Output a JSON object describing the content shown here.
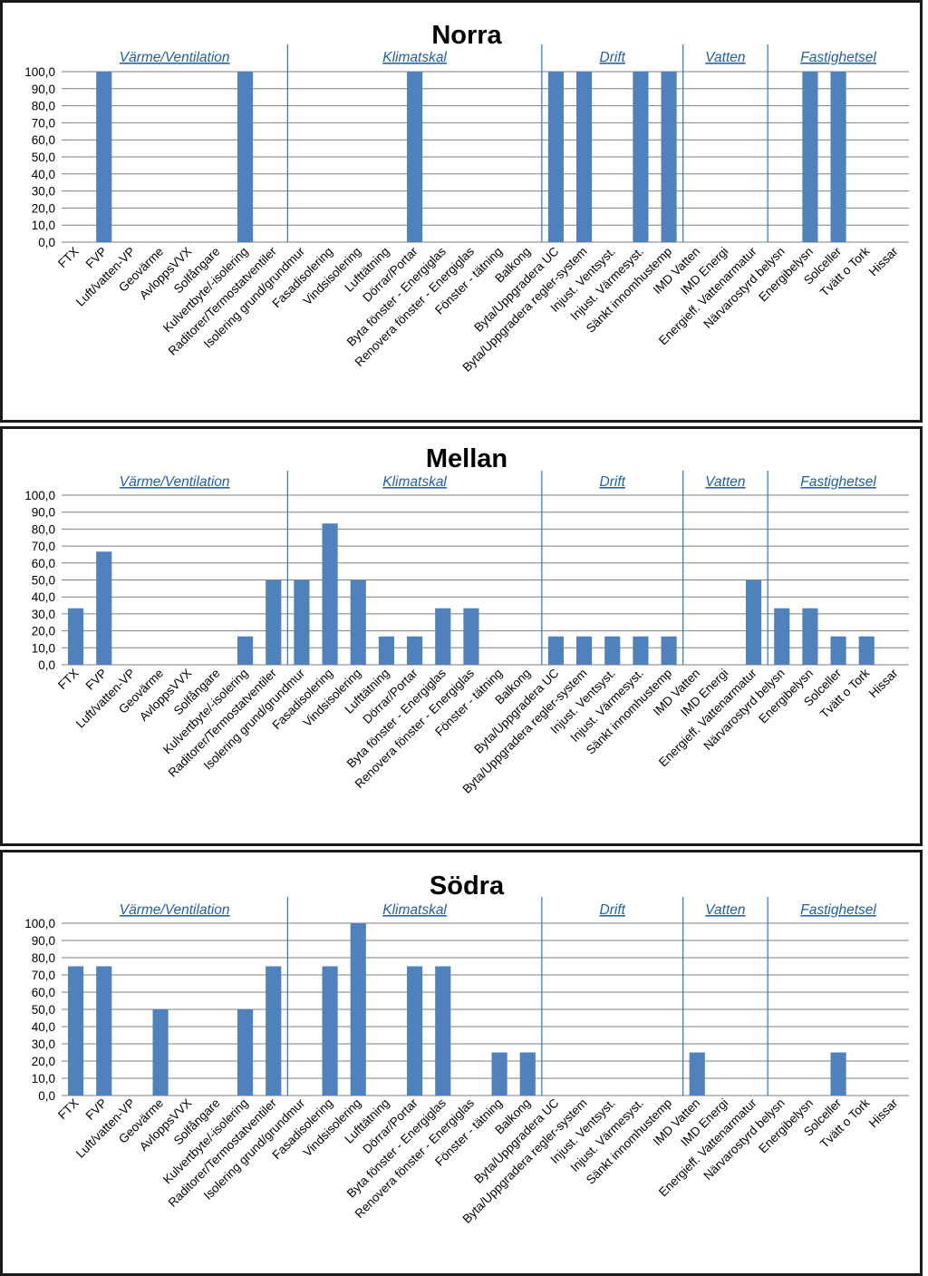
{
  "colors": {
    "bar": "#4f81bd",
    "grid": "#7f7f7f",
    "divider": "#2e75b6",
    "group_label": "#1f5fa8",
    "frame": "#1a1a1a"
  },
  "chart_data": [
    {
      "type": "bar",
      "title": "Norra",
      "ylim": [
        0,
        100
      ],
      "yticks": [
        "100,0",
        "90,0",
        "80,0",
        "70,0",
        "60,0",
        "50,0",
        "40,0",
        "30,0",
        "20,0",
        "10,0",
        "0,0"
      ],
      "grid": true,
      "groups": [
        "Värme/Ventilation",
        "Klimatskal",
        "Drift",
        "Vatten",
        "Fastighetsel"
      ],
      "categories": [
        "FTX",
        "FVP",
        "Luft/vatten-VP",
        "Geovärme",
        "AvloppsVVX",
        "Solfångare",
        "Kulvertbyte/-isolering",
        "Raditorer/Termostatventiler",
        "Isolering grund/grundmur",
        "Fasadisolering",
        "Vindsisolering",
        "Lufttätning",
        "Dörrar/Portar",
        "Byta fönster - Energiglas",
        "Renovera fönster - Energiglas",
        "Fönster - tätning",
        "Balkong",
        "Byta/Uppgradera UC",
        "Byta/Uppgradera regler-system",
        "Injust. Ventsyst.",
        "Injust. Värmesyst.",
        "Sänkt innomhustemp",
        "IMD Vatten",
        "IMD Energi",
        "Energieff. Vattenarmatur",
        "Närvarostyrd belysn",
        "Energibelysn",
        "Solceller",
        "Tvätt o Tork",
        "Hissar"
      ],
      "values": [
        0,
        100,
        0,
        0,
        0,
        0,
        100,
        0,
        0,
        0,
        0,
        0,
        100,
        0,
        0,
        0,
        0,
        100,
        100,
        0,
        100,
        100,
        0,
        0,
        0,
        0,
        100,
        100,
        0,
        0
      ]
    },
    {
      "type": "bar",
      "title": "Mellan",
      "ylim": [
        0,
        100
      ],
      "yticks": [
        "100,0",
        "90,0",
        "80,0",
        "70,0",
        "60,0",
        "50,0",
        "40,0",
        "30,0",
        "20,0",
        "10,0",
        "0,0"
      ],
      "grid": true,
      "groups": [
        "Värme/Ventilation",
        "Klimatskal",
        "Drift",
        "Vatten",
        "Fastighetsel"
      ],
      "categories": [
        "FTX",
        "FVP",
        "Luft/vatten-VP",
        "Geovärme",
        "AvloppsVVX",
        "Solfångare",
        "Kulvertbyte/-isolering",
        "Raditorer/Termostatventiler",
        "Isolering grund/grundmur",
        "Fasadisolering",
        "Vindsisolering",
        "Lufttätning",
        "Dörrar/Portar",
        "Byta fönster - Energiglas",
        "Renovera fönster - Energiglas",
        "Fönster - tätning",
        "Balkong",
        "Byta/Uppgradera UC",
        "Byta/Uppgradera regler-system",
        "Injust. Ventsyst.",
        "Injust. Värmesyst.",
        "Sänkt innomhustemp",
        "IMD Vatten",
        "IMD Energi",
        "Energieff. Vattenarmatur",
        "Närvarostyrd belysn",
        "Energibelysn",
        "Solceller",
        "Tvätt o Tork",
        "Hissar"
      ],
      "values": [
        33.3,
        66.7,
        0,
        0,
        0,
        0,
        16.7,
        50,
        50,
        83.3,
        50,
        16.7,
        16.7,
        33.3,
        33.3,
        0,
        0,
        16.7,
        16.7,
        16.7,
        16.7,
        16.7,
        0,
        0,
        50,
        33.3,
        33.3,
        16.7,
        16.7,
        0
      ]
    },
    {
      "type": "bar",
      "title": "Södra",
      "ylim": [
        0,
        100
      ],
      "yticks": [
        "100,0",
        "90,0",
        "80,0",
        "70,0",
        "60,0",
        "50,0",
        "40,0",
        "30,0",
        "20,0",
        "10,0",
        "0,0"
      ],
      "grid": true,
      "groups": [
        "Värme/Ventilation",
        "Klimatskal",
        "Drift",
        "Vatten",
        "Fastighetsel"
      ],
      "categories": [
        "FTX",
        "FVP",
        "Luft/vatten-VP",
        "Geovärme",
        "AvloppsVVX",
        "Solfångare",
        "Kulvertbyte/-isolering",
        "Raditorer/Termostatventiler",
        "Isolering grund/grundmur",
        "Fasadisolering",
        "Vindsisolering",
        "Lufttätning",
        "Dörrar/Portar",
        "Byta fönster - Energiglas",
        "Renovera fönster - Energiglas",
        "Fönster - tätning",
        "Balkong",
        "Byta/Uppgradera UC",
        "Byta/Uppgradera regler-system",
        "Injust. Ventsyst.",
        "Injust. Värmesyst.",
        "Sänkt innomhustemp",
        "IMD Vatten",
        "IMD Energi",
        "Energieff. Vattenarmatur",
        "Närvarostyrd belysn",
        "Energibelysn",
        "Solceller",
        "Tvätt o Tork",
        "Hissar"
      ],
      "values": [
        75,
        75,
        0,
        50,
        0,
        0,
        50,
        75,
        0,
        75,
        100,
        0,
        75,
        75,
        0,
        25,
        25,
        0,
        0,
        0,
        0,
        0,
        25,
        0,
        0,
        0,
        0,
        25,
        0,
        0
      ]
    }
  ]
}
